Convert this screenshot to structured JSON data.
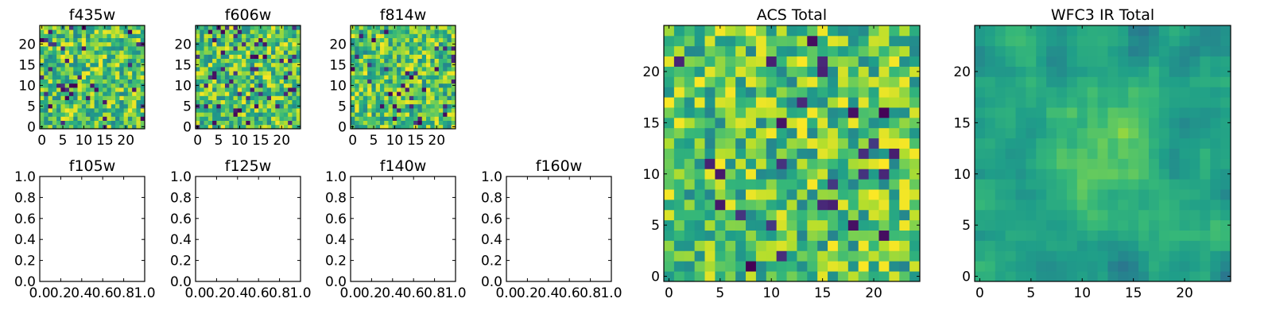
{
  "figure": {
    "description": "Grid of per-filter image cutouts and total images"
  },
  "chart_data": [
    {
      "type": "heatmap",
      "title": "f435w",
      "colormap": "viridis",
      "grid_size": 25,
      "xlim": [
        -0.5,
        24.5
      ],
      "ylim": [
        -0.5,
        24.5
      ],
      "xticks": [
        0,
        5,
        10,
        15,
        20
      ],
      "yticks": [
        0,
        5,
        10,
        15,
        20
      ],
      "xtick_labels": [
        "0",
        "5",
        "10",
        "15",
        "20"
      ],
      "ytick_labels": [
        "0",
        "5",
        "10",
        "15",
        "20"
      ],
      "seed": 11,
      "dark_fraction": 0.06
    },
    {
      "type": "heatmap",
      "title": "f606w",
      "colormap": "viridis",
      "grid_size": 25,
      "xlim": [
        -0.5,
        24.5
      ],
      "ylim": [
        -0.5,
        24.5
      ],
      "xticks": [
        0,
        5,
        10,
        15,
        20
      ],
      "yticks": [
        0,
        5,
        10,
        15,
        20
      ],
      "xtick_labels": [
        "0",
        "5",
        "10",
        "15",
        "20"
      ],
      "ytick_labels": [
        "0",
        "5",
        "10",
        "15",
        "20"
      ],
      "seed": 23,
      "dark_fraction": 0.07
    },
    {
      "type": "heatmap",
      "title": "f814w",
      "colormap": "viridis",
      "grid_size": 25,
      "xlim": [
        -0.5,
        24.5
      ],
      "ylim": [
        -0.5,
        24.5
      ],
      "xticks": [
        0,
        5,
        10,
        15,
        20
      ],
      "yticks": [
        0,
        5,
        10,
        15,
        20
      ],
      "xtick_labels": [
        "0",
        "5",
        "10",
        "15",
        "20"
      ],
      "ytick_labels": [
        "0",
        "5",
        "10",
        "15",
        "20"
      ],
      "seed": 37,
      "dark_fraction": 0.05
    },
    {
      "type": "empty",
      "title": "f105w",
      "xlim": [
        0,
        1
      ],
      "ylim": [
        0,
        1
      ],
      "xtick_labels": [
        "0.0",
        "0.2",
        "0.4",
        "0.6",
        "0.8",
        "1.0"
      ],
      "ytick_labels": [
        "0.0",
        "0.2",
        "0.4",
        "0.6",
        "0.8",
        "1.0"
      ]
    },
    {
      "type": "empty",
      "title": "f125w",
      "xlim": [
        0,
        1
      ],
      "ylim": [
        0,
        1
      ],
      "xtick_labels": [
        "0.0",
        "0.2",
        "0.4",
        "0.6",
        "0.8",
        "1.0"
      ],
      "ytick_labels": [
        "0.0",
        "0.2",
        "0.4",
        "0.6",
        "0.8",
        "1.0"
      ]
    },
    {
      "type": "empty",
      "title": "f140w",
      "xlim": [
        0,
        1
      ],
      "ylim": [
        0,
        1
      ],
      "xtick_labels": [
        "0.0",
        "0.2",
        "0.4",
        "0.6",
        "0.8",
        "1.0"
      ],
      "ytick_labels": [
        "0.0",
        "0.2",
        "0.4",
        "0.6",
        "0.8",
        "1.0"
      ]
    },
    {
      "type": "empty",
      "title": "f160w",
      "xlim": [
        0,
        1
      ],
      "ylim": [
        0,
        1
      ],
      "xtick_labels": [
        "0.0",
        "0.2",
        "0.4",
        "0.6",
        "0.8",
        "1.0"
      ],
      "ytick_labels": [
        "0.0",
        "0.2",
        "0.4",
        "0.6",
        "0.8",
        "1.0"
      ]
    },
    {
      "type": "heatmap",
      "title": "ACS Total",
      "colormap": "viridis",
      "grid_size": 25,
      "xlim": [
        -0.5,
        24.5
      ],
      "ylim": [
        -0.5,
        24.5
      ],
      "xticks": [
        0,
        5,
        10,
        15,
        20
      ],
      "yticks": [
        0,
        5,
        10,
        15,
        20
      ],
      "xtick_labels": [
        "0",
        "5",
        "10",
        "15",
        "20"
      ],
      "ytick_labels": [
        "0",
        "5",
        "10",
        "15",
        "20"
      ],
      "seed": 51,
      "dark_fraction": 0.04
    },
    {
      "type": "heatmap",
      "title": "WFC3 IR Total",
      "colormap": "viridis",
      "grid_size": 25,
      "xlim": [
        -0.5,
        24.5
      ],
      "ylim": [
        -0.5,
        24.5
      ],
      "xticks": [
        0,
        5,
        10,
        15,
        20
      ],
      "yticks": [
        0,
        5,
        10,
        15,
        20
      ],
      "xtick_labels": [
        "0",
        "5",
        "10",
        "15",
        "20"
      ],
      "ytick_labels": [
        "0",
        "5",
        "10",
        "15",
        "20"
      ],
      "seed": 67,
      "dark_fraction": 0.03,
      "smooth": true
    }
  ]
}
